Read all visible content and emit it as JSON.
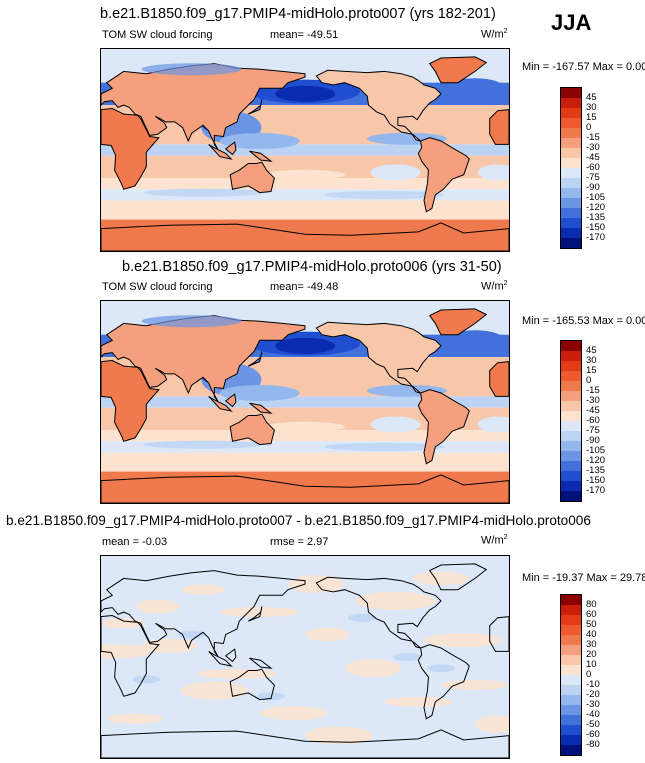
{
  "season": "JJA",
  "panels": [
    {
      "title": "b.e21.B1850.f09_g17.PMIP4-midHolo.proto007 (yrs 182-201)",
      "left_label": "TOM SW cloud forcing",
      "center_label": "mean= -49.51",
      "units": "W/m",
      "units_sup": "2",
      "minmax": "Min = -167.57 Max =   0.00",
      "colorbar_labels": [
        "45",
        "30",
        "15",
        "0",
        "-15",
        "-30",
        "-45",
        "-60",
        "-75",
        "-90",
        "-105",
        "-120",
        "-135",
        "-150",
        "-170"
      ]
    },
    {
      "title": "b.e21.B1850.f09_g17.PMIP4-midHolo.proto006 (yrs 31-50)",
      "left_label": "TOM SW cloud forcing",
      "center_label": "mean= -49.48",
      "units": "W/m",
      "units_sup": "2",
      "minmax": "Min = -165.53 Max =   0.00",
      "colorbar_labels": [
        "45",
        "30",
        "15",
        "0",
        "-15",
        "-30",
        "-45",
        "-60",
        "-75",
        "-90",
        "-105",
        "-120",
        "-135",
        "-150",
        "-170"
      ]
    },
    {
      "title": "b.e21.B1850.f09_g17.PMIP4-midHolo.proto007 - b.e21.B1850.f09_g17.PMIP4-midHolo.proto006",
      "left_label": "mean =  -0.03",
      "center_label": "rmse =   2.97",
      "units": "W/m",
      "units_sup": "2",
      "minmax": "Min = -19.37 Max =  29.78",
      "colorbar_labels": [
        "80",
        "60",
        "50",
        "40",
        "30",
        "20",
        "10",
        "0",
        "-10",
        "-20",
        "-30",
        "-40",
        "-50",
        "-60",
        "-80"
      ]
    }
  ],
  "colors": {
    "abs_scale": [
      "#8b0000",
      "#c81e0a",
      "#e23b16",
      "#ee5a2e",
      "#f07a4e",
      "#f4a07e",
      "#f8c7aa",
      "#fbe3d0",
      "#dce8f8",
      "#bcd3f4",
      "#94b7ee",
      "#6b94e4",
      "#4271dc",
      "#1f4ed0",
      "#0a2ab0",
      "#00127a"
    ],
    "diff_scale": [
      "#8b0000",
      "#c81e0a",
      "#e23b16",
      "#ee5a2e",
      "#f07a4e",
      "#f4a07e",
      "#f8c7aa",
      "#fbe3d0",
      "#dce8f8",
      "#bcd3f4",
      "#94b7ee",
      "#6b94e4",
      "#4271dc",
      "#1f4ed0",
      "#0a2ab0",
      "#00127a"
    ]
  },
  "chart_data": [
    {
      "type": "heatmap",
      "title": "b.e21.B1850.f09_g17.PMIP4-midHolo.proto007 (yrs 182-201)",
      "field": "TOM SW cloud forcing",
      "season": "JJA",
      "units": "W/m2",
      "mean": -49.51,
      "min": -167.57,
      "max": 0.0,
      "contour_levels": [
        45,
        30,
        15,
        0,
        -15,
        -30,
        -45,
        -60,
        -75,
        -90,
        -105,
        -120,
        -135,
        -150,
        -170
      ]
    },
    {
      "type": "heatmap",
      "title": "b.e21.B1850.f09_g17.PMIP4-midHolo.proto006 (yrs 31-50)",
      "field": "TOM SW cloud forcing",
      "season": "JJA",
      "units": "W/m2",
      "mean": -49.48,
      "min": -165.53,
      "max": 0.0,
      "contour_levels": [
        45,
        30,
        15,
        0,
        -15,
        -30,
        -45,
        -60,
        -75,
        -90,
        -105,
        -120,
        -135,
        -150,
        -170
      ]
    },
    {
      "type": "heatmap",
      "title": "b.e21.B1850.f09_g17.PMIP4-midHolo.proto007 - b.e21.B1850.f09_g17.PMIP4-midHolo.proto006",
      "season": "JJA",
      "units": "W/m2",
      "mean": -0.03,
      "rmse": 2.97,
      "min": -19.37,
      "max": 29.78,
      "contour_levels": [
        80,
        60,
        50,
        40,
        30,
        20,
        10,
        0,
        -10,
        -20,
        -30,
        -40,
        -50,
        -60,
        -80
      ]
    }
  ]
}
